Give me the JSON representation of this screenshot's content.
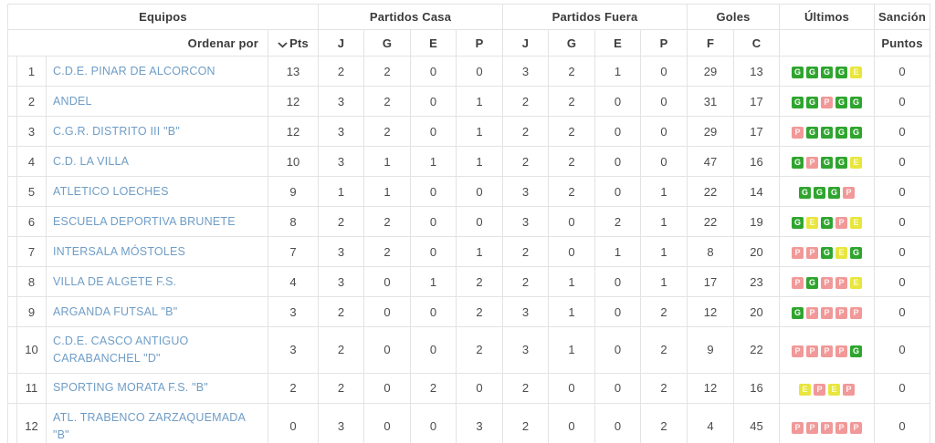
{
  "header": {
    "groups": {
      "equipos": "Equipos",
      "casa": "Partidos Casa",
      "fuera": "Partidos Fuera",
      "goles": "Goles",
      "ultimos": "Últimos",
      "sancion": "Sanción"
    },
    "sort_by_label": "Ordenar por",
    "pts_label": "Pts",
    "sub": {
      "casa": [
        "J",
        "G",
        "E",
        "P"
      ],
      "fuera": [
        "J",
        "G",
        "E",
        "P"
      ],
      "goles": [
        "F",
        "C"
      ],
      "sancion_sub": "Puntos"
    }
  },
  "colors": {
    "team_link": "#6f9dc6",
    "form_win": "#2fa52f",
    "form_draw": "#e8e63d",
    "form_loss": "#f19898",
    "border": "#e3e3e3",
    "header_text": "#3b3b3b"
  },
  "form_legend": {
    "G": "win",
    "E": "draw",
    "P": "loss"
  },
  "standings": {
    "rows": [
      {
        "pos": 1,
        "team": "C.D.E. PINAR DE ALCORCON",
        "pts": 13,
        "casa": [
          2,
          2,
          0,
          0
        ],
        "fuera": [
          3,
          2,
          1,
          0
        ],
        "goles": [
          29,
          13
        ],
        "form": [
          "G",
          "G",
          "G",
          "G",
          "E"
        ],
        "sancion": 0
      },
      {
        "pos": 2,
        "team": "ANDEL",
        "pts": 12,
        "casa": [
          3,
          2,
          0,
          1
        ],
        "fuera": [
          2,
          2,
          0,
          0
        ],
        "goles": [
          31,
          17
        ],
        "form": [
          "G",
          "G",
          "P",
          "G",
          "G"
        ],
        "sancion": 0
      },
      {
        "pos": 3,
        "team": "C.G.R. DISTRITO III \"B\"",
        "pts": 12,
        "casa": [
          3,
          2,
          0,
          1
        ],
        "fuera": [
          2,
          2,
          0,
          0
        ],
        "goles": [
          29,
          17
        ],
        "form": [
          "P",
          "G",
          "G",
          "G",
          "G"
        ],
        "sancion": 0
      },
      {
        "pos": 4,
        "team": "C.D. LA VILLA",
        "pts": 10,
        "casa": [
          3,
          1,
          1,
          1
        ],
        "fuera": [
          2,
          2,
          0,
          0
        ],
        "goles": [
          47,
          16
        ],
        "form": [
          "G",
          "P",
          "G",
          "G",
          "E"
        ],
        "sancion": 0
      },
      {
        "pos": 5,
        "team": "ATLETICO LOECHES",
        "pts": 9,
        "casa": [
          1,
          1,
          0,
          0
        ],
        "fuera": [
          3,
          2,
          0,
          1
        ],
        "goles": [
          22,
          14
        ],
        "form": [
          "G",
          "G",
          "G",
          "P"
        ],
        "sancion": 0
      },
      {
        "pos": 6,
        "team": "ESCUELA DEPORTIVA BRUNETE",
        "pts": 8,
        "casa": [
          2,
          2,
          0,
          0
        ],
        "fuera": [
          3,
          0,
          2,
          1
        ],
        "goles": [
          22,
          19
        ],
        "form": [
          "G",
          "E",
          "G",
          "P",
          "E"
        ],
        "sancion": 0
      },
      {
        "pos": 7,
        "team": "INTERSALA MÓSTOLES",
        "pts": 7,
        "casa": [
          3,
          2,
          0,
          1
        ],
        "fuera": [
          2,
          0,
          1,
          1
        ],
        "goles": [
          8,
          20
        ],
        "form": [
          "P",
          "P",
          "G",
          "E",
          "G"
        ],
        "sancion": 0
      },
      {
        "pos": 8,
        "team": "VILLA DE ALGETE F.S.",
        "pts": 4,
        "casa": [
          3,
          0,
          1,
          2
        ],
        "fuera": [
          2,
          1,
          0,
          1
        ],
        "goles": [
          17,
          23
        ],
        "form": [
          "P",
          "G",
          "P",
          "P",
          "E"
        ],
        "sancion": 0
      },
      {
        "pos": 9,
        "team": "ARGANDA FUTSAL \"B\"",
        "pts": 3,
        "casa": [
          2,
          0,
          0,
          2
        ],
        "fuera": [
          3,
          1,
          0,
          2
        ],
        "goles": [
          12,
          20
        ],
        "form": [
          "G",
          "P",
          "P",
          "P",
          "P"
        ],
        "sancion": 0
      },
      {
        "pos": 10,
        "team": "C.D.E. CASCO ANTIGUO CARABANCHEL \"D\"",
        "pts": 3,
        "casa": [
          2,
          0,
          0,
          2
        ],
        "fuera": [
          3,
          1,
          0,
          2
        ],
        "goles": [
          9,
          22
        ],
        "form": [
          "P",
          "P",
          "P",
          "P",
          "G"
        ],
        "sancion": 0
      },
      {
        "pos": 11,
        "team": "SPORTING MORATA F.S. \"B\"",
        "pts": 2,
        "casa": [
          2,
          0,
          2,
          0
        ],
        "fuera": [
          2,
          0,
          0,
          2
        ],
        "goles": [
          12,
          16
        ],
        "form": [
          "E",
          "P",
          "E",
          "P"
        ],
        "sancion": 0
      },
      {
        "pos": 12,
        "team": "ATL. TRABENCO ZARZAQUEMADA \"B\"",
        "pts": 0,
        "casa": [
          3,
          0,
          0,
          3
        ],
        "fuera": [
          2,
          0,
          0,
          2
        ],
        "goles": [
          4,
          45
        ],
        "form": [
          "P",
          "P",
          "P",
          "P",
          "P"
        ],
        "sancion": 0
      }
    ]
  }
}
